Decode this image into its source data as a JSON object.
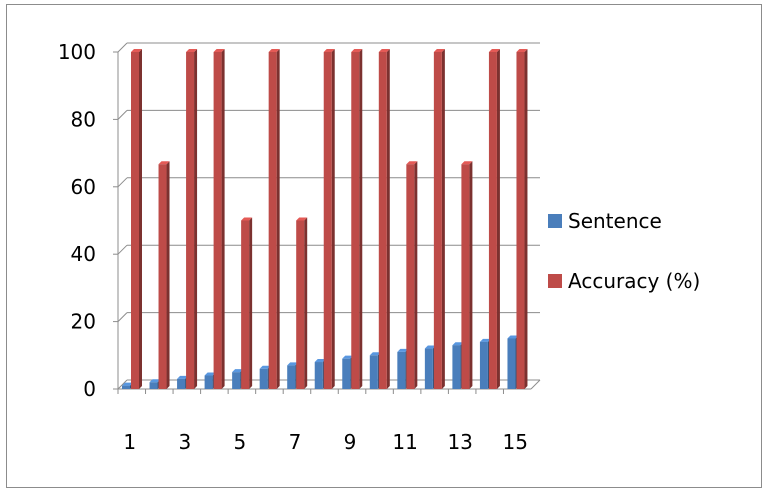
{
  "chart_data": {
    "type": "bar",
    "categories": [
      1,
      2,
      3,
      4,
      5,
      6,
      7,
      8,
      9,
      10,
      11,
      12,
      13,
      14,
      15
    ],
    "x_tick_labels": [
      "1",
      "3",
      "5",
      "7",
      "9",
      "11",
      "13",
      "15"
    ],
    "series": [
      {
        "name": "Sentence",
        "color": "#4a7ebb",
        "values": [
          1,
          2,
          3,
          4,
          5,
          6,
          7,
          8,
          9,
          10,
          11,
          12,
          13,
          14,
          15
        ]
      },
      {
        "name": "Accuracy (%)",
        "color": "#be4b48",
        "values": [
          100,
          66.7,
          100,
          100,
          50,
          100,
          50,
          100,
          100,
          100,
          66.7,
          100,
          66.7,
          100,
          100
        ]
      }
    ],
    "ylim": [
      0,
      100
    ],
    "y_ticks": [
      0,
      20,
      40,
      60,
      80,
      100
    ],
    "grid": true,
    "legend_position": "right",
    "title": "",
    "xlabel": "",
    "ylabel": ""
  }
}
